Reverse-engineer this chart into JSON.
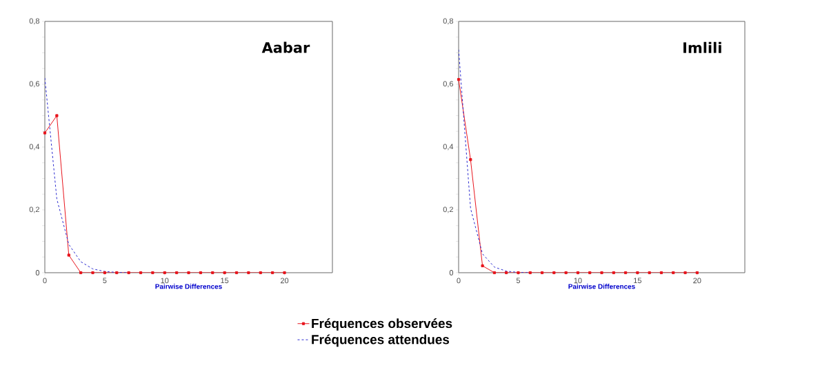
{
  "chart_data": [
    {
      "type": "line",
      "title": "Aabar",
      "xlabel": "Pairwise Differences",
      "legend": "bottom",
      "xlim": [
        0,
        24
      ],
      "ylim": [
        0,
        0.8
      ],
      "xticks": [
        0,
        5,
        10,
        15,
        20
      ],
      "yticks": [
        0,
        {
          "value": 0.05,
          "label": null
        },
        {
          "value": 0.1,
          "label": null
        },
        {
          "value": 0.15,
          "label": null
        },
        {
          "value": 0.2,
          "label": "0,2"
        },
        {
          "value": 0.25,
          "label": null
        },
        {
          "value": 0.3,
          "label": null
        },
        {
          "value": 0.35,
          "label": null
        },
        {
          "value": 0.4,
          "label": "0,4"
        },
        {
          "value": 0.45,
          "label": null
        },
        {
          "value": 0.5,
          "label": null
        },
        {
          "value": 0.55,
          "label": null
        },
        {
          "value": 0.6,
          "label": "0,6"
        },
        {
          "value": 0.65,
          "label": null
        },
        {
          "value": 0.7,
          "label": null
        },
        {
          "value": 0.75,
          "label": null
        },
        {
          "value": 0.8,
          "label": "0,8"
        }
      ],
      "series": [
        {
          "name": "Fréquences observées",
          "color": "#e8141c",
          "marker": "square",
          "line_style": "solid",
          "x": [
            0,
            1,
            2,
            3,
            4,
            5,
            6,
            7,
            8,
            9,
            10,
            11,
            12,
            13,
            14,
            15,
            16,
            17,
            18,
            19,
            20
          ],
          "values": [
            0.445,
            0.5,
            0.056,
            0,
            0,
            0,
            0,
            0,
            0,
            0,
            0,
            0,
            0,
            0,
            0,
            0,
            0,
            0,
            0,
            0,
            0
          ]
        },
        {
          "name": "Fréquences attendues",
          "color": "#2b2bd0",
          "marker": "none",
          "line_style": "dashed",
          "x": [
            0,
            1,
            2,
            3,
            4,
            5,
            6,
            7
          ],
          "values": [
            0.62,
            0.235,
            0.09,
            0.035,
            0.012,
            0.004,
            0.001,
            0
          ]
        }
      ]
    },
    {
      "type": "line",
      "title": "Imlili",
      "xlabel": "Pairwise Differences",
      "xlim": [
        0,
        24
      ],
      "ylim": [
        0,
        0.8
      ],
      "xticks": [
        0,
        5,
        10,
        15,
        20
      ],
      "yticks": [
        0,
        {
          "value": 0.05,
          "label": null
        },
        {
          "value": 0.1,
          "label": null
        },
        {
          "value": 0.15,
          "label": null
        },
        {
          "value": 0.2,
          "label": "0,2"
        },
        {
          "value": 0.25,
          "label": null
        },
        {
          "value": 0.3,
          "label": null
        },
        {
          "value": 0.35,
          "label": null
        },
        {
          "value": 0.4,
          "label": "0,4"
        },
        {
          "value": 0.45,
          "label": null
        },
        {
          "value": 0.5,
          "label": null
        },
        {
          "value": 0.55,
          "label": null
        },
        {
          "value": 0.6,
          "label": "0,6"
        },
        {
          "value": 0.65,
          "label": null
        },
        {
          "value": 0.7,
          "label": null
        },
        {
          "value": 0.75,
          "label": null
        },
        {
          "value": 0.8,
          "label": "0,8"
        }
      ],
      "series": [
        {
          "color": "#e8141c",
          "marker": "square",
          "line_style": "solid",
          "x": [
            0,
            1,
            2,
            3,
            4,
            5,
            6,
            7,
            8,
            9,
            10,
            11,
            12,
            13,
            14,
            15,
            16,
            17,
            18,
            19,
            20
          ],
          "values": [
            0.615,
            0.36,
            0.022,
            0,
            0,
            0,
            0,
            0,
            0,
            0,
            0,
            0,
            0,
            0,
            0,
            0,
            0,
            0,
            0,
            0,
            0
          ]
        },
        {
          "color": "#2b2bd0",
          "marker": "none",
          "line_style": "dashed",
          "x": [
            0,
            1,
            2,
            3,
            4,
            5,
            6
          ],
          "values": [
            0.71,
            0.205,
            0.06,
            0.018,
            0.005,
            0.001,
            0
          ]
        }
      ]
    }
  ]
}
